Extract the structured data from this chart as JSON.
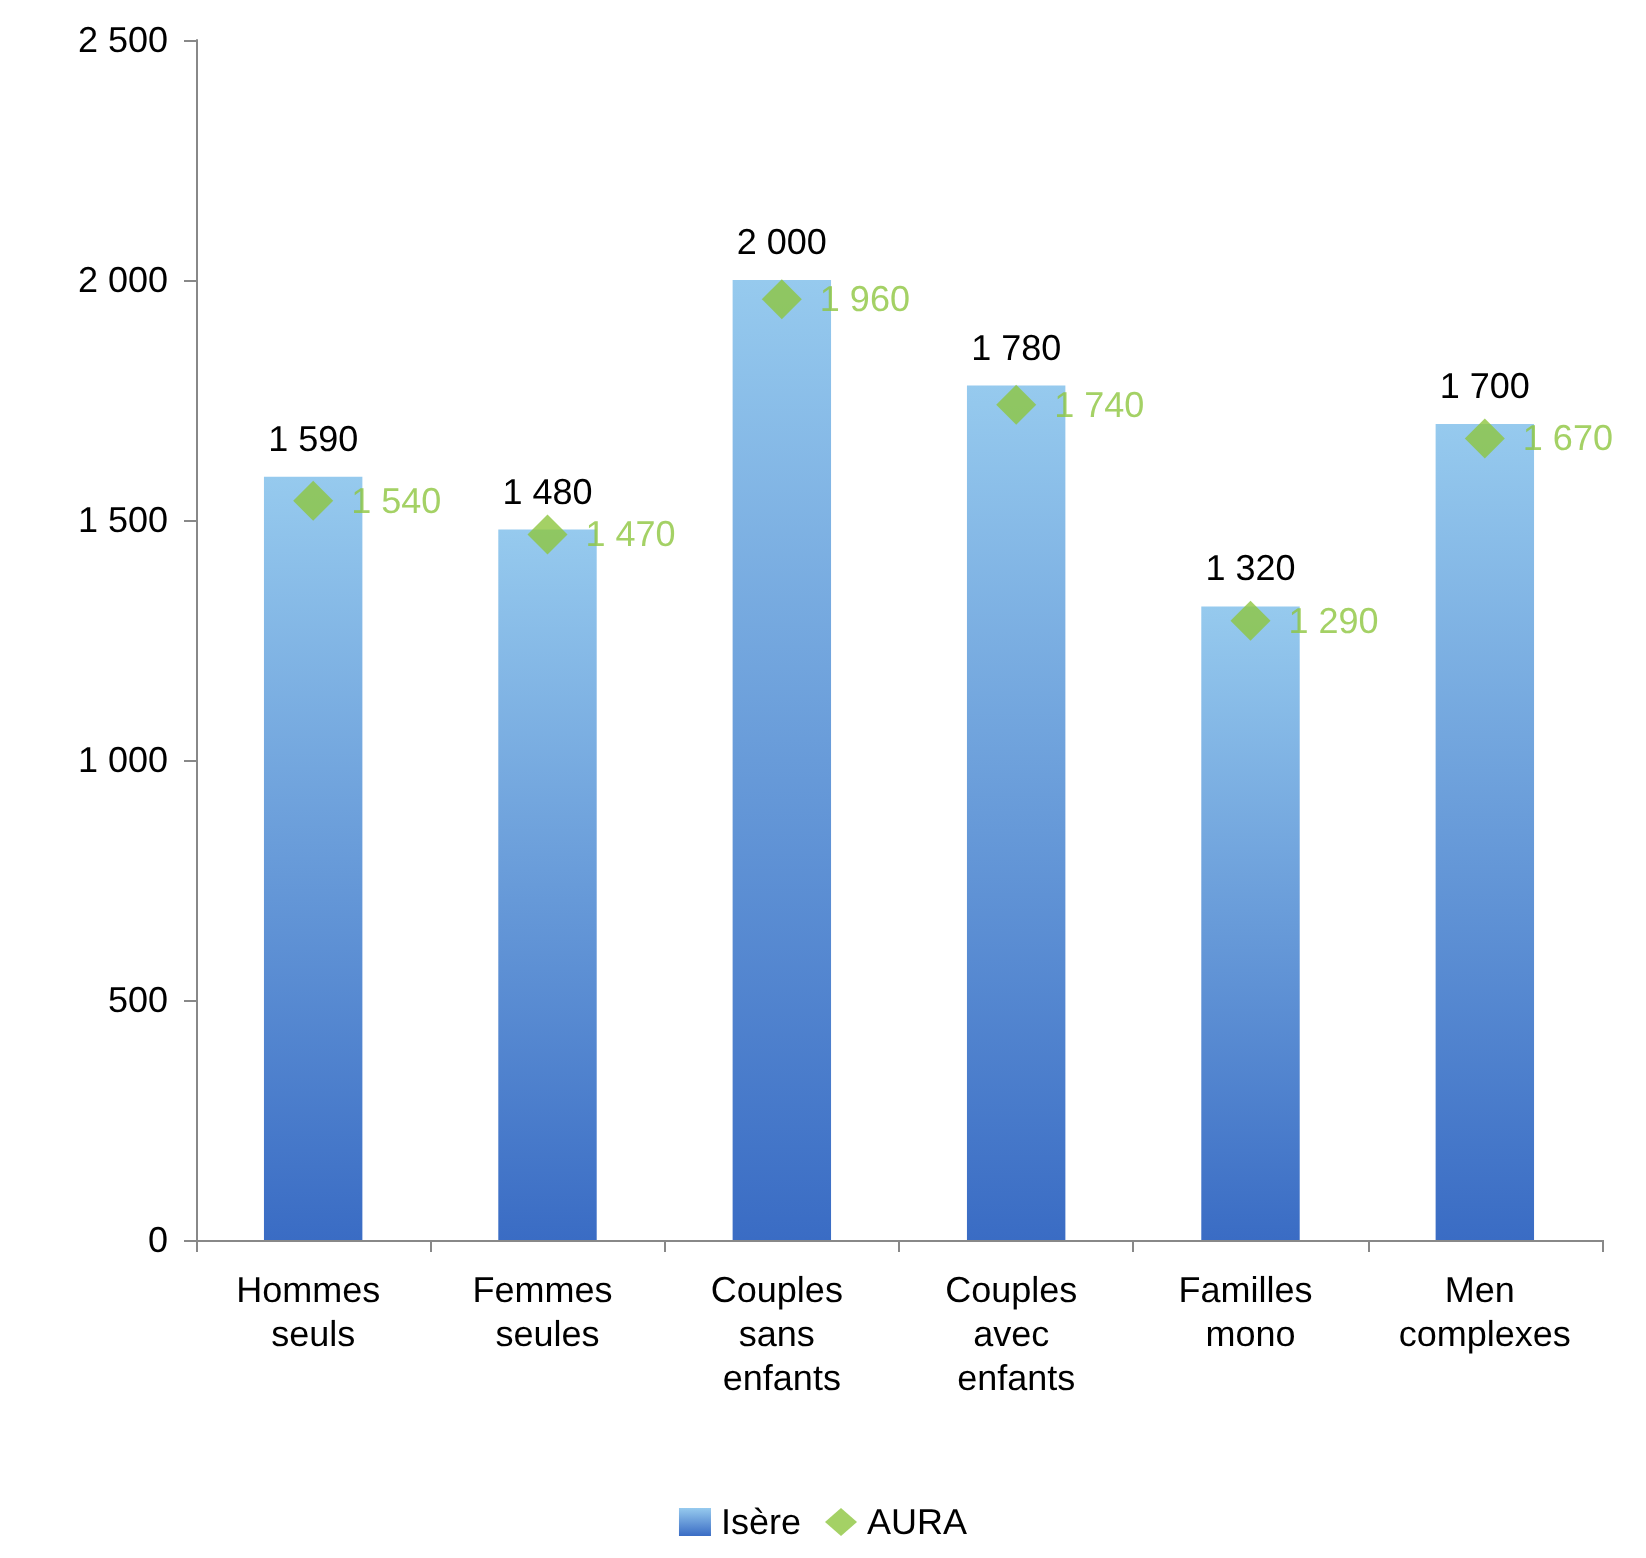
{
  "chart_data": {
    "type": "bar",
    "categories": [
      "Hommes seuls",
      "Femmes seules",
      "Couples sans enfants",
      "Couples avec enfants",
      "Familles mono",
      "Men complexes"
    ],
    "series": [
      {
        "name": "Isère",
        "color": "#5eaee6",
        "values": [
          1590,
          1480,
          2000,
          1780,
          1320,
          1700
        ],
        "value_labels": [
          "1 590",
          "1 480",
          "2 000",
          "1 780",
          "1 320",
          "1 700"
        ]
      },
      {
        "name": "AURA",
        "type": "scatter",
        "marker": "diamond",
        "color": "#8dc63f",
        "x": [
          "Hommes seuls",
          "Femmes seules",
          "Couples sans enfants",
          "Couples avec enfants",
          "Familles mono",
          "Men complexes"
        ],
        "values": [
          1540,
          1470,
          1960,
          1740,
          1290,
          1670
        ],
        "value_labels": [
          "1 540",
          "1 470",
          "1 960",
          "1 740",
          "1 290",
          "1 670"
        ]
      }
    ],
    "ylim": [
      0,
      2500
    ],
    "yticks": [
      {
        "value": 0,
        "label": "0"
      },
      {
        "value": 500,
        "label": "500"
      },
      {
        "value": 1000,
        "label": "1 000"
      },
      {
        "value": 1500,
        "label": "1 500"
      },
      {
        "value": 2000,
        "label": "2 000"
      },
      {
        "value": 2500,
        "label": "2 500"
      }
    ],
    "grid": false,
    "legend": "bottom"
  }
}
